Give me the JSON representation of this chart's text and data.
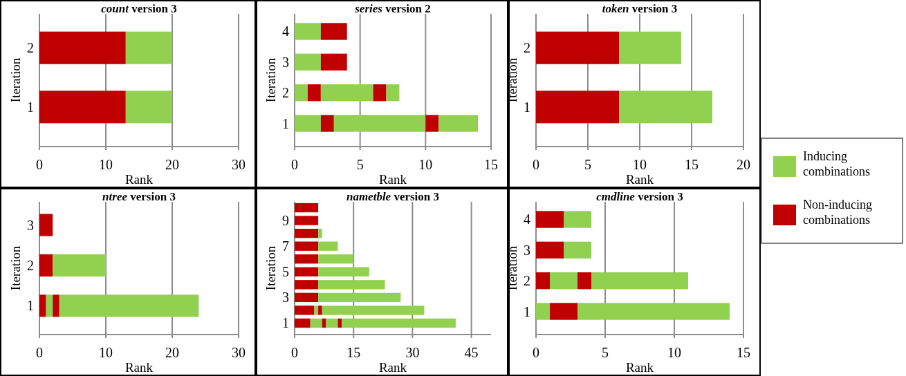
{
  "chart_data": [
    {
      "type": "bar",
      "orientation": "horizontal",
      "stacked": true,
      "title": "count version 3",
      "xlabel": "Rank",
      "ylabel": "Iteration",
      "categories": [
        "2",
        "1"
      ],
      "xlim": [
        0,
        30
      ],
      "xticks": [
        0,
        10,
        20,
        30
      ],
      "grid": "x",
      "series": [
        {
          "color": "#c00000",
          "values": [
            13,
            13
          ]
        },
        {
          "color": "#92d050",
          "values": [
            7,
            7
          ]
        }
      ]
    },
    {
      "type": "bar",
      "orientation": "horizontal",
      "stacked": true,
      "title": "series version 2",
      "xlabel": "Rank",
      "ylabel": "Iteration",
      "categories": [
        "4",
        "3",
        "2",
        "1"
      ],
      "xlim": [
        0,
        15
      ],
      "xticks": [
        0,
        5,
        10,
        15
      ],
      "grid": "x",
      "series": [
        {
          "color": "#92d050",
          "values": [
            2,
            2,
            1,
            2
          ]
        },
        {
          "color": "#c00000",
          "values": [
            2,
            2,
            1,
            1
          ]
        },
        {
          "color": "#92d050",
          "values": [
            null,
            null,
            4,
            7
          ]
        },
        {
          "color": "#c00000",
          "values": [
            null,
            null,
            1,
            1
          ]
        },
        {
          "color": "#92d050",
          "values": [
            null,
            null,
            1,
            3
          ]
        }
      ]
    },
    {
      "type": "bar",
      "orientation": "horizontal",
      "stacked": true,
      "title": "token version 3",
      "xlabel": "Rank",
      "ylabel": "Iteration",
      "categories": [
        "2",
        "1"
      ],
      "xlim": [
        0,
        20
      ],
      "xticks": [
        0,
        5,
        10,
        15,
        20
      ],
      "grid": "x",
      "legend": "right",
      "series": [
        {
          "name": "Non-inducing combinations",
          "color": "#c00000",
          "values": [
            8,
            8
          ]
        },
        {
          "name": "Inducing combinations",
          "color": "#92d050",
          "values": [
            6,
            9
          ]
        }
      ]
    },
    {
      "type": "bar",
      "orientation": "horizontal",
      "stacked": true,
      "title": "ntree version 3",
      "xlabel": "Rank",
      "ylabel": "Iteration",
      "categories": [
        "3",
        "2",
        "1"
      ],
      "xlim": [
        0,
        30
      ],
      "xticks": [
        0,
        10,
        20,
        30
      ],
      "grid": "x",
      "series": [
        {
          "color": "#c00000",
          "values": [
            2,
            2,
            1
          ]
        },
        {
          "color": "#92d050",
          "values": [
            null,
            8,
            1
          ]
        },
        {
          "color": "#c00000",
          "values": [
            null,
            null,
            1
          ]
        },
        {
          "color": "#92d050",
          "values": [
            null,
            null,
            21
          ]
        }
      ]
    },
    {
      "type": "bar",
      "orientation": "horizontal",
      "stacked": true,
      "title": "nametble version 3",
      "xlabel": "Rank",
      "ylabel": "Iteration",
      "categories": [
        null,
        "9",
        null,
        "7",
        null,
        "5",
        null,
        "3",
        null,
        "1"
      ],
      "xlim": [
        0,
        50
      ],
      "xticks": [
        0,
        15,
        30,
        45
      ],
      "grid": "x",
      "series": [
        {
          "color": "#c00000",
          "values": [
            6,
            6,
            6,
            6,
            6,
            6,
            6,
            6,
            5,
            4
          ]
        },
        {
          "color": "#92d050",
          "values": [
            null,
            null,
            1,
            5,
            9,
            13,
            17,
            21,
            1,
            3
          ]
        },
        {
          "color": "#c00000",
          "values": [
            null,
            null,
            null,
            null,
            null,
            null,
            null,
            null,
            1,
            1
          ]
        },
        {
          "color": "#92d050",
          "values": [
            null,
            null,
            null,
            null,
            null,
            null,
            null,
            null,
            26,
            3
          ]
        },
        {
          "color": "#c00000",
          "values": [
            null,
            null,
            null,
            null,
            null,
            null,
            null,
            null,
            null,
            1
          ]
        },
        {
          "color": "#92d050",
          "values": [
            null,
            null,
            null,
            null,
            null,
            null,
            null,
            null,
            null,
            29
          ]
        }
      ]
    },
    {
      "type": "bar",
      "orientation": "horizontal",
      "stacked": true,
      "title": "cmdline version 3",
      "xlabel": "Rank",
      "ylabel": "Iteration",
      "categories": [
        "4",
        "3",
        "2",
        "1"
      ],
      "xlim": [
        0,
        15
      ],
      "xticks": [
        0,
        5,
        10,
        15
      ],
      "grid": "x",
      "series": [
        {
          "color": "#92d050",
          "values": [
            null,
            null,
            null,
            1
          ]
        },
        {
          "color": "#c00000",
          "values": [
            2,
            2,
            1,
            2
          ]
        },
        {
          "color": "#92d050",
          "values": [
            2,
            2,
            2,
            11
          ]
        },
        {
          "color": "#c00000",
          "values": [
            null,
            null,
            1,
            null
          ]
        },
        {
          "color": "#92d050",
          "values": [
            null,
            null,
            7,
            null
          ]
        }
      ]
    }
  ]
}
